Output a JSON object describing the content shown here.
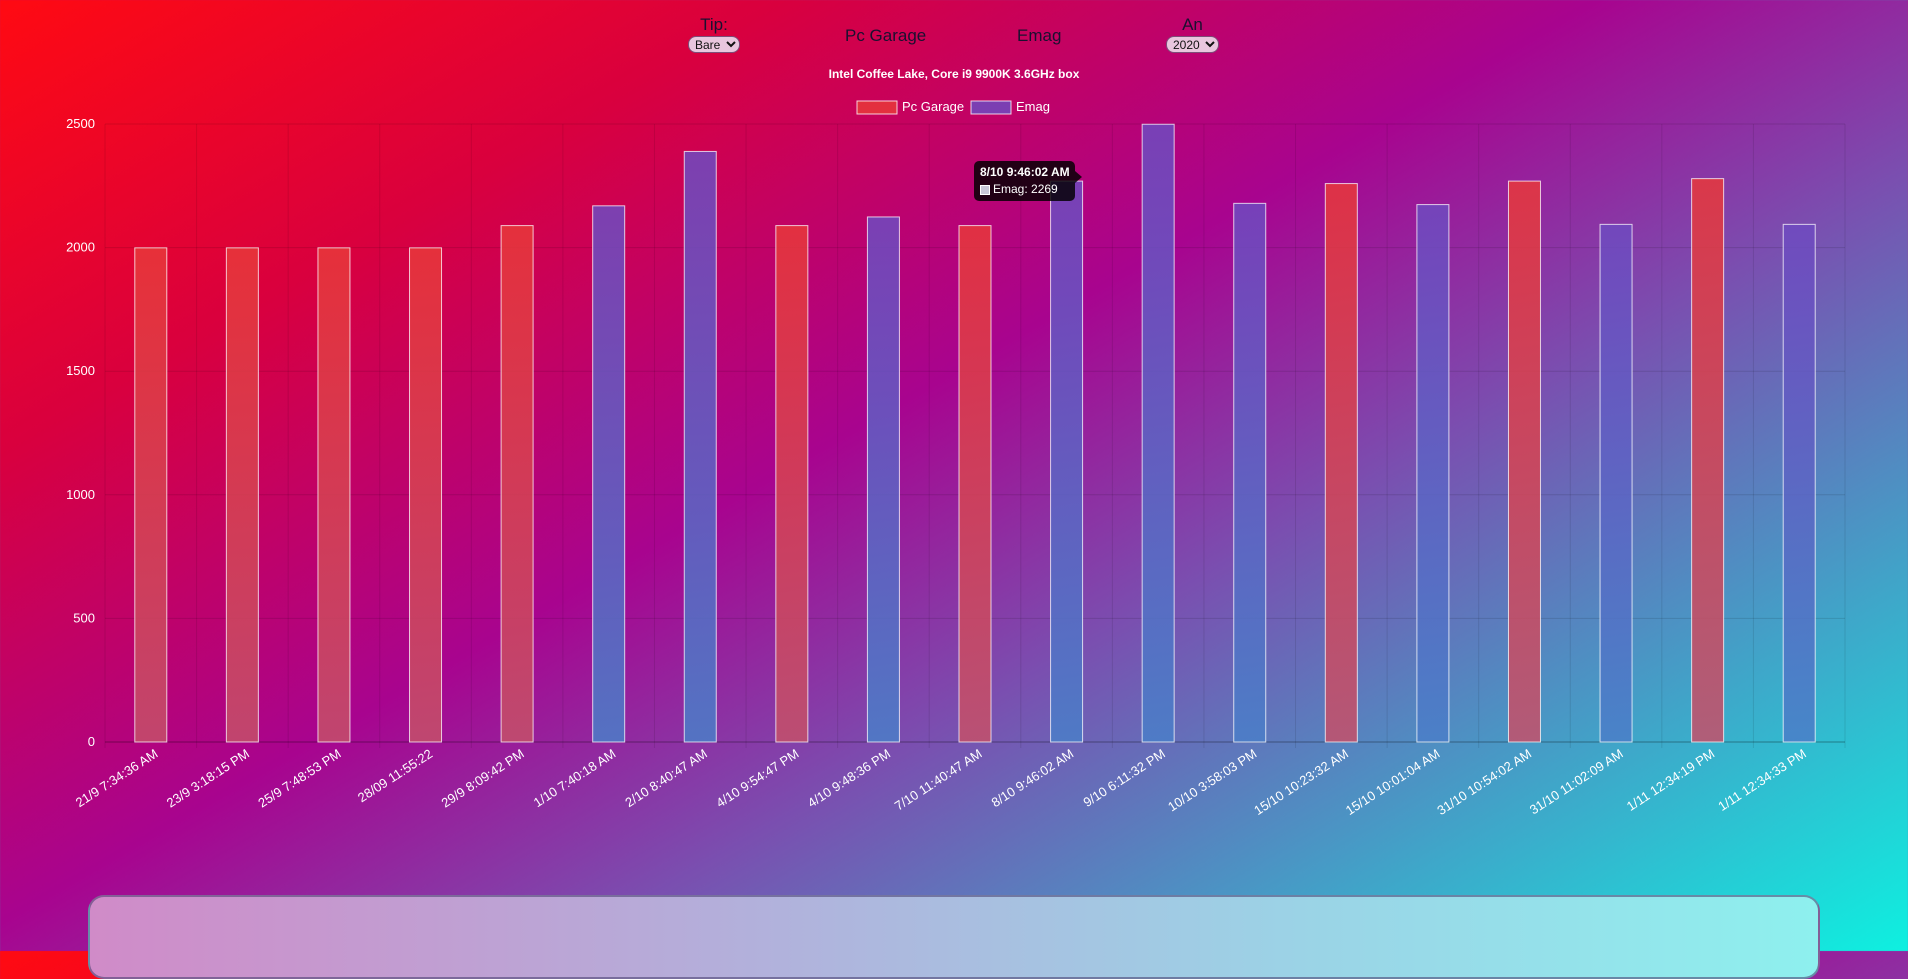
{
  "controls": {
    "type_label": "Tip:",
    "type_value": "Bare",
    "link_pcgarage": "Pc Garage",
    "link_emag": "Emag",
    "year_label": "An",
    "year_value": "2020"
  },
  "tooltip": {
    "title": "8/10 9:46:02 AM",
    "body": "Emag: 2269"
  },
  "colors": {
    "pcgarage": "#e8383a",
    "emag": "#6f4ac0"
  },
  "chart_data": {
    "type": "bar",
    "title": "Intel Coffee Lake, Core i9 9900K 3.6GHz box",
    "legend_position": "top",
    "grid": true,
    "ylim": [
      0,
      2500
    ],
    "yticks": [
      0,
      500,
      1000,
      1500,
      2000,
      2500
    ],
    "categories": [
      "21/9 7:34:36 AM",
      "23/9 3:18:15 PM",
      "25/9 7:48:53 PM",
      "28/09 11:55:22",
      "29/9 8:09:42 PM",
      "1/10 7:40:18 AM",
      "2/10 8:40:47 AM",
      "4/10 9:54:47 PM",
      "4/10 9:48:36 PM",
      "7/10 11:40:47 AM",
      "8/10 9:46:02 AM",
      "9/10 6:11:32 PM",
      "10/10 3:58:03 PM",
      "15/10 10:23:32 AM",
      "15/10 10:01:04 AM",
      "31/10 10:54:02 AM",
      "31/10 11:02:09 AM",
      "1/11 12:34:19 PM",
      "1/11 12:34:33 PM"
    ],
    "series": [
      {
        "name": "Pc Garage",
        "values": [
          1999,
          1999,
          1999,
          1999,
          2089,
          null,
          null,
          2089,
          null,
          2089,
          null,
          null,
          null,
          2259,
          null,
          2269,
          null,
          2279,
          null
        ]
      },
      {
        "name": "Emag",
        "values": [
          null,
          null,
          null,
          null,
          null,
          2169,
          2389,
          null,
          2124,
          null,
          2269,
          2499,
          2179,
          null,
          2174,
          null,
          2094,
          null,
          2094
        ]
      }
    ]
  }
}
